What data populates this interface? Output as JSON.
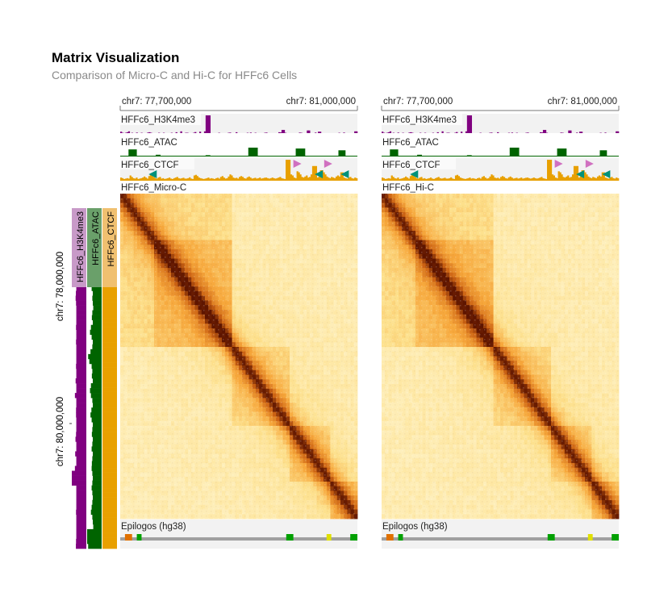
{
  "title": "Matrix Visualization",
  "subtitle": "Comparison of Micro-C and Hi-C for HFFc6 Cells",
  "colors": {
    "h3k4me3": "#800080",
    "atac": "#006400",
    "ctcf": "#e8a000",
    "ctcf_forward_motif": "#d070c0",
    "ctcf_reverse_motif": "#00917a",
    "track_bg": "#f2f2f2",
    "heatmap_low": "#fff7d6",
    "heatmap_high": "#5e1500"
  },
  "chart_data": [
    {
      "type": "heatmap",
      "name": "HFFc6_Micro-C",
      "label": "HFFc6_Micro-C",
      "x_axis": {
        "tick_labels": [
          "chr7: 77,700,000",
          "chr7: 81,000,000"
        ],
        "range": [
          77700000,
          81000000
        ]
      },
      "y_axis": {
        "tick_labels": [
          "chr7: 78,000,000",
          "chr7: 80,000,000"
        ]
      },
      "tracks": [
        "HFFc6_H3K4me3",
        "HFFc6_ATAC",
        "HFFc6_CTCF"
      ],
      "row_tracks": [
        "HFFc6_H3K4me3",
        "HFFc6_ATAC",
        "HFFc6_CTCF"
      ],
      "bottom_track": "Epilogos (hg38)",
      "tads": [
        [
          0.0,
          0.47
        ],
        [
          0.14,
          0.47
        ],
        [
          0.47,
          0.72
        ],
        [
          0.72,
          0.88
        ],
        [
          0.88,
          1.0
        ]
      ]
    },
    {
      "type": "heatmap",
      "name": "HFFc6_Hi-C",
      "label": "HFFc6_Hi-C",
      "x_axis": {
        "tick_labels": [
          "chr7: 77,700,000",
          "chr7: 81,000,000"
        ],
        "range": [
          77700000,
          81000000
        ]
      },
      "tracks": [
        "HFFc6_H3K4me3",
        "HFFc6_ATAC",
        "HFFc6_CTCF"
      ],
      "bottom_track": "Epilogos (hg38)",
      "tads": [
        [
          0.0,
          0.47
        ],
        [
          0.14,
          0.47
        ],
        [
          0.47,
          0.72
        ],
        [
          0.72,
          0.88
        ],
        [
          0.88,
          1.0
        ]
      ]
    }
  ],
  "signals": {
    "h3k4me3": [
      0.08,
      0.02,
      0.0,
      0.02,
      0.05,
      0.1,
      0.0,
      0.02,
      0.0,
      0.0,
      0.03,
      0.0,
      0.0,
      0.02,
      0.0,
      0.0,
      0.0,
      0.03,
      0.05,
      0.02,
      0.0,
      0.0,
      0.0,
      0.0,
      0.02,
      0.0,
      0.0,
      0.02,
      0.0,
      0.0,
      0.0,
      0.0,
      0.02,
      0.0,
      0.0,
      0.05,
      0.0,
      0.0,
      0.1,
      0.0,
      0.0,
      0.02,
      0.02,
      0.0,
      0.0,
      0.0,
      0.02,
      0.06,
      0.0,
      0.0,
      0.08,
      0.0,
      0.0,
      0.1,
      1.0,
      1.0,
      1.0,
      0.0,
      0.0,
      0.0,
      0.0,
      0.0,
      0.02,
      0.0,
      0.0,
      0.0,
      0.0,
      0.0,
      0.02,
      0.03,
      0.0,
      0.0,
      0.0,
      0.05,
      0.0,
      0.0,
      0.0,
      0.0,
      0.0,
      0.0,
      0.02,
      0.0,
      0.03,
      0.0,
      0.0,
      0.02,
      0.0,
      0.0,
      0.0,
      0.0,
      0.0,
      0.02,
      0.03,
      0.0,
      0.0,
      0.0,
      0.0,
      0.0,
      0.0,
      0.0,
      0.05,
      0.04,
      0.18,
      0.18,
      0.02,
      0.0,
      0.0,
      0.0,
      0.0,
      0.0,
      0.0,
      0.0,
      0.0,
      0.03,
      0.02,
      0.0,
      0.0,
      0.0,
      0.15,
      0.15,
      0.0,
      0.0,
      0.0,
      0.03,
      0.0,
      0.08,
      0.08,
      0.0,
      0.0,
      0.0,
      0.0,
      0.0,
      0.0,
      0.0,
      0.0,
      0.0,
      0.0,
      0.0,
      0.02,
      0.0,
      0.0,
      0.03,
      0.0,
      0.0,
      0.0,
      0.0,
      0.0,
      0.0,
      0.1,
      0.1
    ],
    "atac": [
      0.0,
      0.0,
      0.0,
      0.0,
      0.0,
      0.0,
      0.0,
      0.0,
      0.0,
      0.0,
      0.0,
      0.0,
      0.0,
      0.0,
      0.0,
      0.0,
      0.0,
      0.0,
      0.0,
      0.0,
      0.0,
      0.0,
      0.0,
      0.0,
      0.0,
      0.0,
      0.0,
      0.0,
      0.0,
      0.0,
      0.0,
      0.0,
      0.0,
      0.0,
      0.0,
      0.0,
      0.0,
      0.0,
      0.0,
      0.0,
      0.0,
      0.0,
      0.0,
      0.0,
      0.0,
      0.0,
      0.0,
      0.0,
      0.0,
      0.0,
      0.0,
      0.0,
      0.0,
      0.0,
      0.0,
      0.0,
      0.0,
      0.0,
      0.0,
      0.0,
      0.0,
      0.0,
      0.0,
      0.0,
      0.0,
      0.0,
      0.0,
      0.0,
      0.0,
      0.0,
      0.0,
      0.0,
      0.0,
      0.0,
      0.0,
      0.0,
      0.0,
      0.0,
      0.0,
      0.0,
      0.0,
      0.0,
      0.0,
      0.0,
      0.0,
      0.0,
      0.0,
      0.0,
      0.0,
      0.0,
      0.0,
      0.0,
      0.0,
      0.0,
      0.0,
      0.0,
      0.0,
      0.0,
      0.0,
      0.0,
      0.0,
      0.0,
      0.0,
      0.0,
      0.0,
      0.0,
      0.0,
      0.0,
      0.0,
      0.0,
      0.0,
      0.0,
      0.0,
      0.0,
      0.0,
      0.0,
      0.0,
      0.0,
      0.0,
      0.0,
      0.0,
      0.0,
      0.0,
      0.0,
      0.0,
      0.0,
      0.0,
      0.0,
      0.0,
      0.0,
      0.0,
      0.0,
      0.0,
      0.0,
      0.0,
      0.0,
      0.0,
      0.0,
      0.0,
      0.0,
      0.0,
      0.0,
      0.0,
      0.0,
      0.0
    ],
    "atac_peaks": [
      [
        0.035,
        0.07,
        0.8
      ],
      [
        0.54,
        0.58,
        1.0
      ],
      [
        0.15,
        0.17,
        0.2
      ],
      [
        0.36,
        0.38,
        0.15
      ],
      [
        0.74,
        0.78,
        0.9
      ],
      [
        0.92,
        0.95,
        0.7
      ]
    ],
    "ctcf": [
      0.15,
      0.12,
      0.08,
      0.1,
      0.12,
      0.1,
      0.25,
      0.18,
      0.12,
      0.1,
      0.15,
      0.08,
      0.1,
      0.12,
      0.15,
      0.2,
      0.15,
      0.1,
      0.22,
      0.3,
      0.25,
      0.18,
      0.12,
      0.1,
      0.15,
      0.18,
      0.1,
      0.12,
      0.08,
      0.1,
      0.12,
      0.15,
      0.1,
      0.08,
      0.12,
      0.15,
      0.18,
      0.12,
      0.1,
      0.12,
      0.14,
      0.1,
      0.1,
      0.12,
      0.16,
      0.1,
      0.08,
      0.25,
      0.28,
      0.22,
      0.15,
      0.12,
      0.1,
      0.08,
      0.1,
      0.12,
      0.15,
      0.1,
      0.12,
      0.1,
      0.08,
      0.12,
      0.14,
      0.1,
      0.18,
      0.22,
      0.15,
      0.1,
      0.12,
      0.2,
      0.3,
      0.25,
      0.15,
      0.12,
      0.14,
      0.1,
      0.18,
      0.22,
      0.18,
      0.12,
      0.1,
      0.16,
      0.2,
      0.15,
      0.1,
      0.12,
      0.14,
      0.1,
      0.12,
      0.15,
      0.1,
      0.12,
      0.14,
      0.15,
      0.12,
      0.1,
      0.12,
      0.15,
      0.12,
      0.1,
      0.12,
      0.15,
      0.18,
      0.12,
      0.1,
      0.08,
      1.0,
      1.0,
      1.0,
      0.3,
      0.25,
      0.15,
      0.12,
      0.45,
      0.4,
      0.3,
      0.18,
      0.15,
      0.2,
      0.25,
      0.15,
      0.18,
      0.3,
      0.7,
      0.7,
      0.7,
      0.15,
      0.2,
      0.5,
      0.5,
      0.4,
      0.3,
      0.2,
      0.15,
      0.12,
      0.18,
      0.15,
      0.12,
      0.2,
      0.25,
      0.2,
      0.4,
      0.4,
      0.15,
      0.12,
      0.1,
      0.15,
      0.18,
      0.12,
      0.1,
      0.15,
      0.12
    ],
    "ctcf_forward": [
      0.73,
      0.86
    ],
    "ctcf_reverse": [
      0.12,
      0.82,
      0.93
    ],
    "epilogos_spikes": [
      [
        0.07,
        0.09,
        "#00a000"
      ],
      [
        0.7,
        0.73,
        "#00a000"
      ],
      [
        0.97,
        1.0,
        "#00a000"
      ],
      [
        0.02,
        0.05,
        "#e07000"
      ],
      [
        0.87,
        0.89,
        "#e0e000"
      ]
    ]
  }
}
